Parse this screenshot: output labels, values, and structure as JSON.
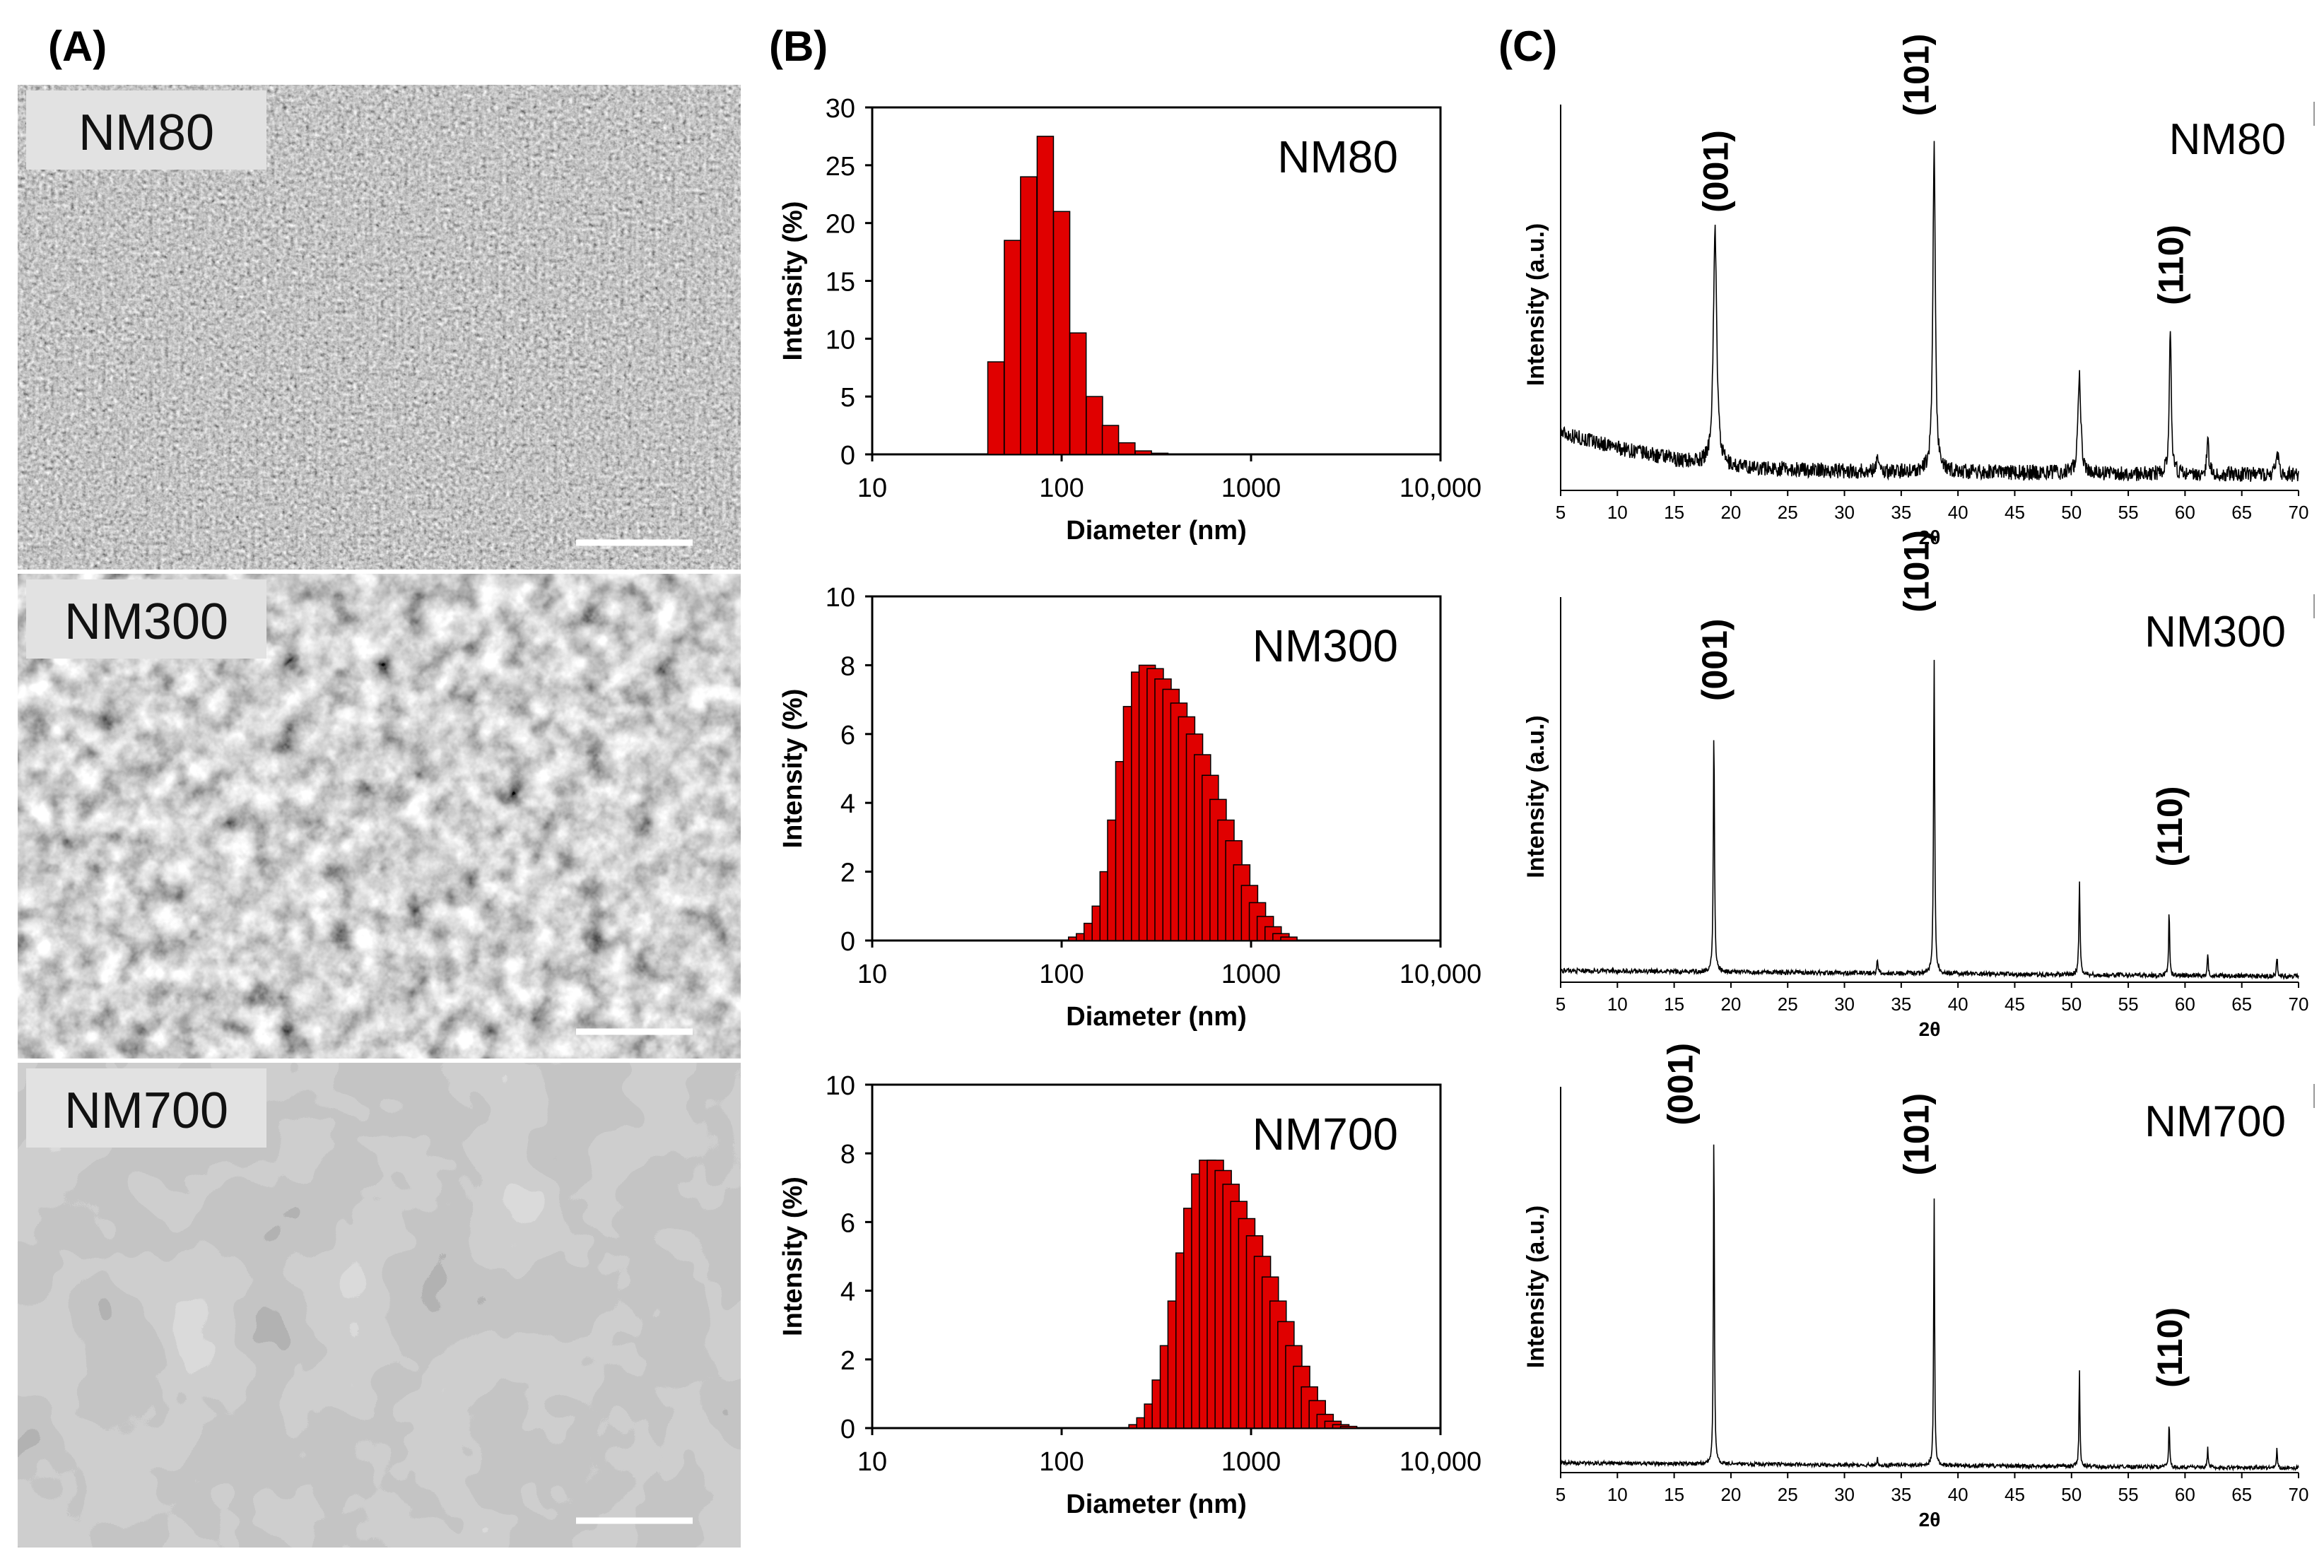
{
  "panels": [
    {
      "label": "(A)"
    },
    {
      "label": "(B)"
    },
    {
      "label": "(C)"
    }
  ],
  "sem": [
    {
      "label": "NM80",
      "texture": "fine"
    },
    {
      "label": "NM300",
      "texture": "medium"
    },
    {
      "label": "NM700",
      "texture": "coarse"
    }
  ],
  "chart_data": [
    {
      "type": "bar",
      "panel": "B",
      "sample": "NM80",
      "xscale": "log",
      "xlim": [
        10,
        10000
      ],
      "xticks": [
        "10",
        "100",
        "1000",
        "10,000"
      ],
      "xlabel": "Diameter (nm)",
      "ylabel": "Intensity (%)",
      "ylim": [
        0,
        30
      ],
      "yticks": [
        "0",
        "5",
        "10",
        "15",
        "20",
        "25",
        "30"
      ],
      "bar_color": "#e00000",
      "x": [
        45,
        55,
        67,
        82,
        100,
        122,
        149,
        181,
        221,
        270,
        330
      ],
      "values": [
        8.0,
        18.5,
        24.0,
        27.5,
        21.0,
        10.5,
        5.0,
        2.5,
        1.0,
        0.3,
        0.1
      ]
    },
    {
      "type": "bar",
      "panel": "B",
      "sample": "NM300",
      "xscale": "log",
      "xlim": [
        10,
        10000
      ],
      "xticks": [
        "10",
        "100",
        "1000",
        "10,000"
      ],
      "xlabel": "Diameter (nm)",
      "ylabel": "Intensity (%)",
      "ylim": [
        0,
        10
      ],
      "yticks": [
        "0",
        "2",
        "4",
        "6",
        "8",
        "10"
      ],
      "bar_color": "#e00000",
      "x": [
        120,
        132,
        145,
        160,
        176,
        193,
        213,
        234,
        258,
        283,
        312,
        343,
        378,
        416,
        457,
        503,
        554,
        609,
        670,
        737,
        811,
        893,
        982,
        1081,
        1189,
        1308,
        1439,
        1584
      ],
      "values": [
        0.1,
        0.2,
        0.5,
        1.0,
        2.0,
        3.5,
        5.2,
        6.8,
        7.8,
        8.0,
        7.9,
        7.6,
        7.3,
        6.9,
        6.5,
        6.0,
        5.4,
        4.8,
        4.1,
        3.5,
        2.9,
        2.2,
        1.6,
        1.1,
        0.7,
        0.4,
        0.2,
        0.1
      ]
    },
    {
      "type": "bar",
      "panel": "B",
      "sample": "NM700",
      "xscale": "log",
      "xlim": [
        10,
        10000
      ],
      "xticks": [
        "10",
        "100",
        "1000",
        "10,000"
      ],
      "xlabel": "Diameter (nm)",
      "ylabel": "Intensity (%)",
      "ylim": [
        0,
        10
      ],
      "yticks": [
        "0",
        "2",
        "4",
        "6",
        "8",
        "10"
      ],
      "bar_color": "#e00000",
      "x": [
        250,
        275,
        302,
        332,
        366,
        402,
        443,
        487,
        536,
        589,
        648,
        713,
        784,
        862,
        949,
        1044,
        1148,
        1263,
        1389,
        1528,
        1681,
        1849,
        2034,
        2237,
        2461,
        2707,
        2978,
        3276
      ],
      "values": [
        0.1,
        0.3,
        0.7,
        1.4,
        2.4,
        3.7,
        5.1,
        6.4,
        7.4,
        7.8,
        7.8,
        7.5,
        7.1,
        6.6,
        6.1,
        5.6,
        5.0,
        4.4,
        3.7,
        3.1,
        2.4,
        1.8,
        1.2,
        0.8,
        0.4,
        0.2,
        0.1,
        0.05
      ]
    },
    {
      "type": "line",
      "panel": "C",
      "sample": "NM80",
      "xlabel": "2θ",
      "ylabel": "Intensity (a.u.)",
      "xlim": [
        5,
        70
      ],
      "ylim": [
        0,
        1
      ],
      "xticks": [
        "5",
        "10",
        "15",
        "20",
        "25",
        "30",
        "35",
        "40",
        "45",
        "50",
        "55",
        "60",
        "65",
        "70"
      ],
      "noise": 0.02,
      "baseline": [
        [
          5,
          0.15
        ],
        [
          10,
          0.11
        ],
        [
          15,
          0.08
        ],
        [
          20,
          0.06
        ],
        [
          30,
          0.05
        ],
        [
          70,
          0.04
        ]
      ],
      "peaks": [
        [
          18.6,
          0.62,
          0.35
        ],
        [
          32.9,
          0.05,
          0.2
        ],
        [
          37.9,
          0.85,
          0.25
        ],
        [
          50.7,
          0.25,
          0.3
        ],
        [
          58.7,
          0.37,
          0.2
        ],
        [
          62.0,
          0.1,
          0.2
        ],
        [
          68.1,
          0.06,
          0.3
        ]
      ],
      "annotations": [
        {
          "text": "(001)",
          "x": 18.6,
          "y": 0.72
        },
        {
          "text": "(101)",
          "x": 36.3,
          "y": 0.97
        },
        {
          "text": "(110)",
          "x": 58.7,
          "y": 0.48
        }
      ]
    },
    {
      "type": "line",
      "panel": "C",
      "sample": "NM300",
      "xlabel": "2θ",
      "ylabel": "Intensity (a.u.)",
      "xlim": [
        5,
        70
      ],
      "ylim": [
        0,
        1
      ],
      "xticks": [
        "5",
        "10",
        "15",
        "20",
        "25",
        "30",
        "35",
        "40",
        "45",
        "50",
        "55",
        "60",
        "65",
        "70"
      ],
      "noise": 0.006,
      "baseline": [
        [
          5,
          0.03
        ],
        [
          70,
          0.015
        ]
      ],
      "peaks": [
        [
          18.5,
          0.63,
          0.12
        ],
        [
          32.9,
          0.04,
          0.1
        ],
        [
          37.9,
          0.82,
          0.12
        ],
        [
          50.7,
          0.24,
          0.12
        ],
        [
          58.6,
          0.17,
          0.1
        ],
        [
          62.0,
          0.06,
          0.1
        ],
        [
          68.1,
          0.05,
          0.12
        ]
      ],
      "annotations": [
        {
          "text": "(001)",
          "x": 18.5,
          "y": 0.73
        },
        {
          "text": "(101)",
          "x": 36.3,
          "y": 0.96
        },
        {
          "text": "(110)",
          "x": 58.6,
          "y": 0.3
        }
      ]
    },
    {
      "type": "line",
      "panel": "C",
      "sample": "NM700",
      "xlabel": "2θ",
      "ylabel": "Intensity (a.u.)",
      "xlim": [
        5,
        70
      ],
      "ylim": [
        0,
        1
      ],
      "xticks": [
        "5",
        "10",
        "15",
        "20",
        "25",
        "30",
        "35",
        "40",
        "45",
        "50",
        "55",
        "60",
        "65",
        "70"
      ],
      "noise": 0.005,
      "baseline": [
        [
          5,
          0.025
        ],
        [
          70,
          0.012
        ]
      ],
      "peaks": [
        [
          18.5,
          0.88,
          0.1
        ],
        [
          32.9,
          0.02,
          0.1
        ],
        [
          37.9,
          0.7,
          0.1
        ],
        [
          50.7,
          0.25,
          0.1
        ],
        [
          58.6,
          0.12,
          0.1
        ],
        [
          62.0,
          0.05,
          0.1
        ],
        [
          68.1,
          0.05,
          0.1
        ]
      ],
      "annotations": [
        {
          "text": "(001)",
          "x": 15.5,
          "y": 0.9
        },
        {
          "text": "(101)",
          "x": 36.3,
          "y": 0.77
        },
        {
          "text": "(110)",
          "x": 58.6,
          "y": 0.22
        }
      ]
    }
  ]
}
